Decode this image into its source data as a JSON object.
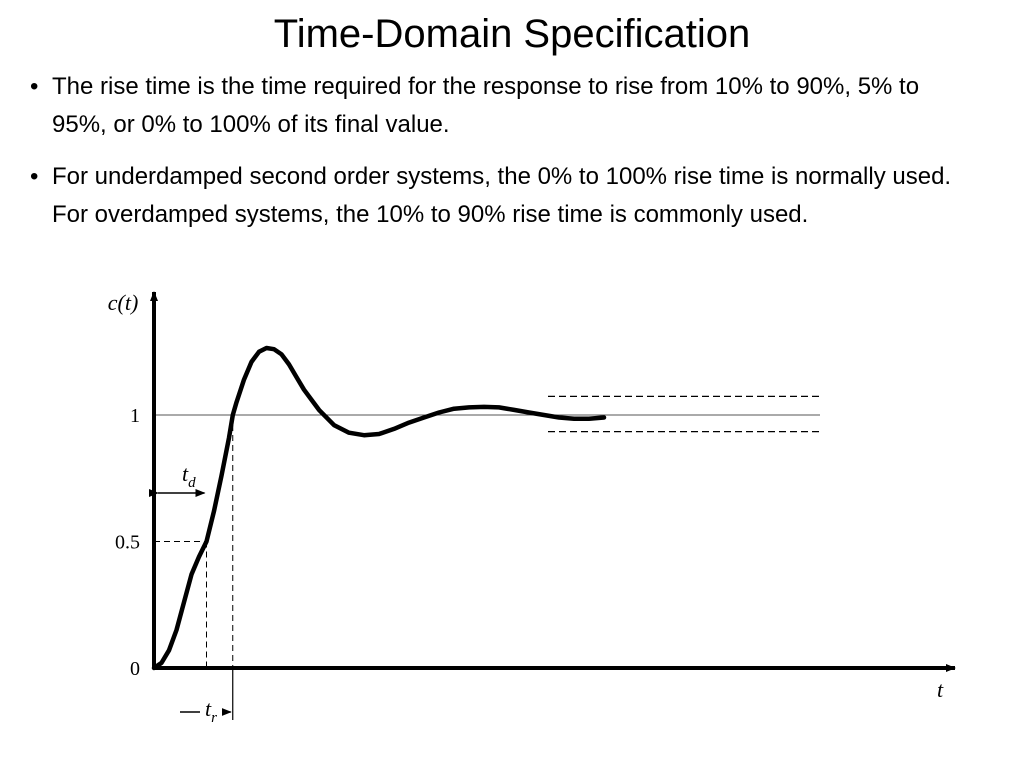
{
  "slide": {
    "title": "Time-Domain Specification",
    "bullets": [
      "The rise time is the time required for the response to rise from 10% to 90%, 5% to 95%, or 0% to 100% of its final value.",
      "For underdamped second order systems, the 0% to 100% rise time is normally used. For overdamped systems, the 10% to 90% rise time is commonly used."
    ],
    "bullet_marker": "•"
  },
  "chart_data": {
    "type": "line",
    "title": "",
    "xlabel": "t",
    "ylabel": "c(t)",
    "ytick_labels": [
      "0",
      "0.5",
      "1"
    ],
    "yticks": [
      0,
      0.5,
      1
    ],
    "ylim": [
      0,
      1.45
    ],
    "xlim": [
      0,
      7.5
    ],
    "grid": false,
    "reference_line": 1,
    "tolerance_band": [
      0.95,
      1.05
    ],
    "annotations": [
      {
        "label_main": "t",
        "label_sub": "d",
        "meaning": "delay time (c = 0.5)",
        "t": 0.7
      },
      {
        "label_main": "t",
        "label_sub": "r",
        "meaning": "rise time (c = 1)",
        "t": 1.05
      }
    ],
    "series": [
      {
        "x": [
          0,
          0.1,
          0.2,
          0.3,
          0.4,
          0.5,
          0.6,
          0.7,
          0.8,
          0.9,
          1.0,
          1.05,
          1.1,
          1.2,
          1.3,
          1.4,
          1.5,
          1.6,
          1.7,
          1.8,
          1.9,
          2.0,
          2.2,
          2.4,
          2.6,
          2.8,
          3.0,
          3.2,
          3.4,
          3.6,
          3.8,
          4.0,
          4.2,
          4.4,
          4.6,
          4.8,
          5.0,
          5.2,
          5.4,
          5.6,
          5.8,
          6.0
        ],
        "y": [
          0,
          0.02,
          0.07,
          0.15,
          0.26,
          0.37,
          0.44,
          0.5,
          0.62,
          0.76,
          0.91,
          1.0,
          1.05,
          1.14,
          1.21,
          1.25,
          1.265,
          1.26,
          1.24,
          1.2,
          1.15,
          1.1,
          1.02,
          0.96,
          0.93,
          0.92,
          0.925,
          0.945,
          0.97,
          0.99,
          1.01,
          1.025,
          1.03,
          1.032,
          1.03,
          1.02,
          1.01,
          1.0,
          0.99,
          0.985,
          0.985,
          0.99
        ]
      }
    ]
  }
}
